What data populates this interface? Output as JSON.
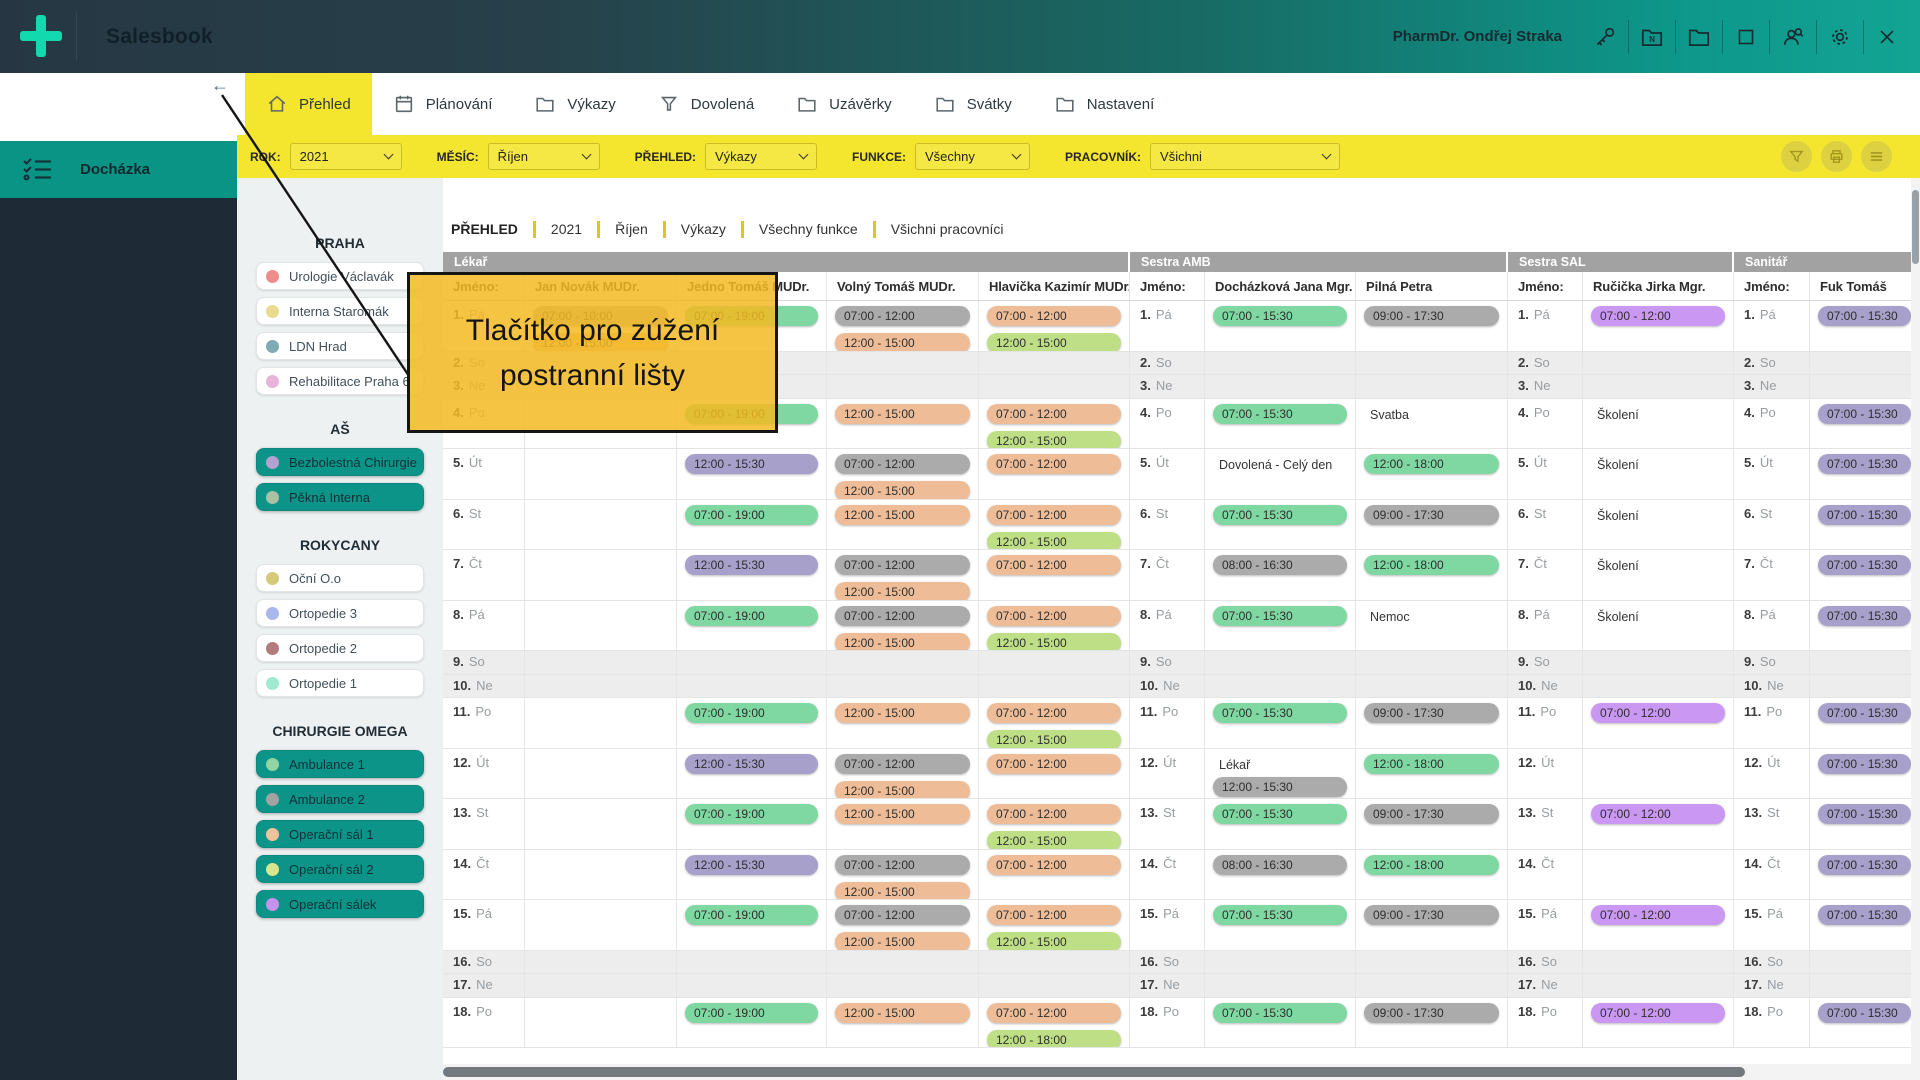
{
  "app": {
    "title": "Salesbook",
    "user": "PharmDr. Ondřej Straka"
  },
  "module": {
    "label": "Docházka"
  },
  "nav": {
    "back_arrow": "←",
    "tabs": [
      {
        "key": "prehled",
        "label": "Přehled",
        "icon": "home",
        "active": true
      },
      {
        "key": "planovani",
        "label": "Plánování",
        "icon": "calendar",
        "active": false
      },
      {
        "key": "vykazy",
        "label": "Výkazy",
        "icon": "folder",
        "active": false
      },
      {
        "key": "dovolena",
        "label": "Dovolená",
        "icon": "funnel",
        "active": false
      },
      {
        "key": "uzaverky",
        "label": "Uzávěrky",
        "icon": "folder",
        "active": false
      },
      {
        "key": "svatky",
        "label": "Svátky",
        "icon": "folder",
        "active": false
      },
      {
        "key": "nastaveni",
        "label": "Nastavení",
        "icon": "folder",
        "active": false
      }
    ]
  },
  "filters": {
    "items": [
      {
        "key": "rok",
        "label": "ROK:",
        "value": "2021"
      },
      {
        "key": "mesic",
        "label": "MĚSÍC:",
        "value": "Říjen"
      },
      {
        "key": "prehled",
        "label": "PŘEHLED:",
        "value": "Výkazy"
      },
      {
        "key": "funkce",
        "label": "FUNKCE:",
        "value": "Všechny"
      },
      {
        "key": "pracovnik",
        "label": "PRACOVNÍK:",
        "value": "Všichni"
      }
    ]
  },
  "sidebar": {
    "sections": [
      {
        "title": "PRAHA",
        "items": [
          {
            "label": "Urologie Václavák",
            "dot": "#ef8d8d",
            "selected": false
          },
          {
            "label": "Interna Staromák",
            "dot": "#e9da8f",
            "selected": false
          },
          {
            "label": "LDN Hrad",
            "dot": "#7fabb4",
            "selected": false
          },
          {
            "label": "Rehabilitace Praha 6",
            "dot": "#e7b3d8",
            "selected": false
          }
        ]
      },
      {
        "title": "AŠ",
        "items": [
          {
            "label": "Bezbolestná Chirurgie",
            "dot": "#b3a1cf",
            "selected": true
          },
          {
            "label": "Pěkná Interna",
            "dot": "#a8c2a3",
            "selected": true
          }
        ]
      },
      {
        "title": "ROKYCANY",
        "items": [
          {
            "label": "Oční O.o",
            "dot": "#d5ca7a",
            "selected": false
          },
          {
            "label": "Ortopedie 3",
            "dot": "#a9b7ec",
            "selected": false
          },
          {
            "label": "Ortopedie 2",
            "dot": "#b27c7c",
            "selected": false
          },
          {
            "label": "Ortopedie 1",
            "dot": "#a0ead1",
            "selected": false
          }
        ]
      },
      {
        "title": "CHIRURGIE OMEGA",
        "items": [
          {
            "label": "Ambulance 1",
            "dot": "#90d5a2",
            "selected": true
          },
          {
            "label": "Ambulance 2",
            "dot": "#a2a2a2",
            "selected": true
          },
          {
            "label": "Operační sál 1",
            "dot": "#f0c29c",
            "selected": true
          },
          {
            "label": "Operační sál 2",
            "dot": "#d8e48e",
            "selected": true
          },
          {
            "label": "Operační sálek",
            "dot": "#c693ec",
            "selected": true
          }
        ]
      }
    ]
  },
  "breadcrumb": [
    "PŘEHLED",
    "2021",
    "Říjen",
    "Výkazy",
    "Všechny funkce",
    "Všichni pracovníci"
  ],
  "tooltip": {
    "text": "Tlačítko pro zúžení postranní lišty"
  },
  "colors": {
    "accent_yellow": "#f4e62f",
    "teal": "#0d9488",
    "topbar_dark": "#263743",
    "group_header": "#a2a2a2",
    "chip": {
      "green": "#7fd7a1",
      "gray": "#ababab",
      "peach": "#eebd98",
      "lightgreen": "#bedf85",
      "lavender": "#a6a0ca",
      "violet": "#ca97f2"
    }
  },
  "table": {
    "name_label": "Jméno:",
    "groups": [
      {
        "label": "Lékař",
        "employees": [
          {
            "key": "novak",
            "name": "Jan Novák MUDr."
          },
          {
            "key": "jedno",
            "name": "Jedno Tomáš MUDr."
          },
          {
            "key": "volny",
            "name": "Volný Tomáš MUDr."
          },
          {
            "key": "hlavicka",
            "name": "Hlavička Kazimír MUDr."
          }
        ]
      },
      {
        "label": "Sestra AMB",
        "employees": [
          {
            "key": "dochazkova",
            "name": "Docházková Jana Mgr."
          },
          {
            "key": "pilna",
            "name": "Pilná Petra"
          }
        ]
      },
      {
        "label": "Sestra SAL",
        "employees": [
          {
            "key": "rucicka",
            "name": "Ručička Jirka Mgr."
          }
        ]
      },
      {
        "label": "Sanitář",
        "employees": [
          {
            "key": "fuk",
            "name": "Fuk Tomáš"
          }
        ]
      }
    ],
    "days": [
      {
        "num": "1.",
        "abbr": "Pá",
        "weekend": false,
        "cells": {
          "novak": [
            {
              "t": "07:00 - 10:00",
              "c": "gray"
            },
            {
              "t": "12:00 - 15:00",
              "c": "peach"
            }
          ],
          "jedno": [
            {
              "t": "07:00 - 19:00",
              "c": "green"
            }
          ],
          "volny": [
            {
              "t": "07:00 - 12:00",
              "c": "gray"
            },
            {
              "t": "12:00 - 15:00",
              "c": "peach"
            }
          ],
          "hlavicka": [
            {
              "t": "07:00 - 12:00",
              "c": "peach"
            },
            {
              "t": "12:00 - 15:00",
              "c": "lightgreen"
            }
          ],
          "dochazkova": [
            {
              "t": "07:00 - 15:30",
              "c": "green"
            }
          ],
          "pilna": [
            {
              "t": "09:00 - 17:30",
              "c": "gray"
            }
          ],
          "rucicka": [
            {
              "t": "07:00 - 12:00",
              "c": "violet"
            }
          ],
          "fuk": [
            {
              "t": "07:00 - 15:30",
              "c": "lavender"
            }
          ]
        }
      },
      {
        "num": "2.",
        "abbr": "So",
        "weekend": true,
        "cells": {}
      },
      {
        "num": "3.",
        "abbr": "Ne",
        "weekend": true,
        "cells": {}
      },
      {
        "num": "4.",
        "abbr": "Po",
        "weekend": false,
        "cells": {
          "jedno": [
            {
              "t": "07:00 - 19:00",
              "c": "green"
            }
          ],
          "volny": [
            {
              "t": "12:00 - 15:00",
              "c": "peach"
            }
          ],
          "hlavicka": [
            {
              "t": "07:00 - 12:00",
              "c": "peach"
            },
            {
              "t": "12:00 - 15:00",
              "c": "lightgreen"
            }
          ],
          "dochazkova": [
            {
              "t": "07:00 - 15:30",
              "c": "green"
            }
          ],
          "pilna": [
            {
              "note": "Svatba"
            }
          ],
          "rucicka": [
            {
              "note": "Školení"
            }
          ],
          "fuk": [
            {
              "t": "07:00 - 15:30",
              "c": "lavender"
            }
          ]
        }
      },
      {
        "num": "5.",
        "abbr": "Út",
        "weekend": false,
        "cells": {
          "jedno": [
            {
              "t": "12:00 - 15:30",
              "c": "lavender"
            }
          ],
          "volny": [
            {
              "t": "07:00 - 12:00",
              "c": "gray"
            },
            {
              "t": "12:00 - 15:00",
              "c": "peach"
            }
          ],
          "hlavicka": [
            {
              "t": "07:00 - 12:00",
              "c": "peach"
            }
          ],
          "dochazkova": [
            {
              "note": "Dovolená - Celý den"
            }
          ],
          "pilna": [
            {
              "t": "12:00 - 18:00",
              "c": "green"
            }
          ],
          "rucicka": [
            {
              "note": "Školení"
            }
          ],
          "fuk": [
            {
              "t": "07:00 - 15:30",
              "c": "lavender"
            }
          ]
        }
      },
      {
        "num": "6.",
        "abbr": "St",
        "weekend": false,
        "cells": {
          "jedno": [
            {
              "t": "07:00 - 19:00",
              "c": "green"
            }
          ],
          "volny": [
            {
              "t": "12:00 - 15:00",
              "c": "peach"
            }
          ],
          "hlavicka": [
            {
              "t": "07:00 - 12:00",
              "c": "peach"
            },
            {
              "t": "12:00 - 15:00",
              "c": "lightgreen"
            }
          ],
          "dochazkova": [
            {
              "t": "07:00 - 15:30",
              "c": "green"
            }
          ],
          "pilna": [
            {
              "t": "09:00 - 17:30",
              "c": "gray"
            }
          ],
          "rucicka": [
            {
              "note": "Školení"
            }
          ],
          "fuk": [
            {
              "t": "07:00 - 15:30",
              "c": "lavender"
            }
          ]
        }
      },
      {
        "num": "7.",
        "abbr": "Čt",
        "weekend": false,
        "cells": {
          "jedno": [
            {
              "t": "12:00 - 15:30",
              "c": "lavender"
            }
          ],
          "volny": [
            {
              "t": "07:00 - 12:00",
              "c": "gray"
            },
            {
              "t": "12:00 - 15:00",
              "c": "peach"
            }
          ],
          "hlavicka": [
            {
              "t": "07:00 - 12:00",
              "c": "peach"
            }
          ],
          "dochazkova": [
            {
              "t": "08:00 - 16:30",
              "c": "gray"
            }
          ],
          "pilna": [
            {
              "t": "12:00 - 18:00",
              "c": "green"
            }
          ],
          "rucicka": [
            {
              "note": "Školení"
            }
          ],
          "fuk": [
            {
              "t": "07:00 - 15:30",
              "c": "lavender"
            }
          ]
        }
      },
      {
        "num": "8.",
        "abbr": "Pá",
        "weekend": false,
        "cells": {
          "jedno": [
            {
              "t": "07:00 - 19:00",
              "c": "green"
            }
          ],
          "volny": [
            {
              "t": "07:00 - 12:00",
              "c": "gray"
            },
            {
              "t": "12:00 - 15:00",
              "c": "peach"
            }
          ],
          "hlavicka": [
            {
              "t": "07:00 - 12:00",
              "c": "peach"
            },
            {
              "t": "12:00 - 15:00",
              "c": "lightgreen"
            }
          ],
          "dochazkova": [
            {
              "t": "07:00 - 15:30",
              "c": "green"
            }
          ],
          "pilna": [
            {
              "note": "Nemoc"
            }
          ],
          "rucicka": [
            {
              "note": "Školení"
            }
          ],
          "fuk": [
            {
              "t": "07:00 - 15:30",
              "c": "lavender"
            }
          ]
        }
      },
      {
        "num": "9.",
        "abbr": "So",
        "weekend": true,
        "cells": {}
      },
      {
        "num": "10.",
        "abbr": "Ne",
        "weekend": true,
        "cells": {}
      },
      {
        "num": "11.",
        "abbr": "Po",
        "weekend": false,
        "cells": {
          "jedno": [
            {
              "t": "07:00 - 19:00",
              "c": "green"
            }
          ],
          "volny": [
            {
              "t": "12:00 - 15:00",
              "c": "peach"
            }
          ],
          "hlavicka": [
            {
              "t": "07:00 - 12:00",
              "c": "peach"
            },
            {
              "t": "12:00 - 15:00",
              "c": "lightgreen"
            }
          ],
          "dochazkova": [
            {
              "t": "07:00 - 15:30",
              "c": "green"
            }
          ],
          "pilna": [
            {
              "t": "09:00 - 17:30",
              "c": "gray"
            }
          ],
          "rucicka": [
            {
              "t": "07:00 - 12:00",
              "c": "violet"
            }
          ],
          "fuk": [
            {
              "t": "07:00 - 15:30",
              "c": "lavender"
            }
          ]
        }
      },
      {
        "num": "12.",
        "abbr": "Út",
        "weekend": false,
        "cells": {
          "jedno": [
            {
              "t": "12:00 - 15:30",
              "c": "lavender"
            }
          ],
          "volny": [
            {
              "t": "07:00 - 12:00",
              "c": "gray"
            },
            {
              "t": "12:00 - 15:00",
              "c": "peach"
            }
          ],
          "hlavicka": [
            {
              "t": "07:00 - 12:00",
              "c": "peach"
            }
          ],
          "dochazkova": [
            {
              "note": "Lékař"
            },
            {
              "t": "12:00 - 15:30",
              "c": "gray"
            }
          ],
          "pilna": [
            {
              "t": "12:00 - 18:00",
              "c": "green"
            }
          ],
          "rucicka": [],
          "fuk": [
            {
              "t": "07:00 - 15:30",
              "c": "lavender"
            }
          ]
        }
      },
      {
        "num": "13.",
        "abbr": "St",
        "weekend": false,
        "cells": {
          "jedno": [
            {
              "t": "07:00 - 19:00",
              "c": "green"
            }
          ],
          "volny": [
            {
              "t": "12:00 - 15:00",
              "c": "peach"
            }
          ],
          "hlavicka": [
            {
              "t": "07:00 - 12:00",
              "c": "peach"
            },
            {
              "t": "12:00 - 15:00",
              "c": "lightgreen"
            }
          ],
          "dochazkova": [
            {
              "t": "07:00 - 15:30",
              "c": "green"
            }
          ],
          "pilna": [
            {
              "t": "09:00 - 17:30",
              "c": "gray"
            }
          ],
          "rucicka": [
            {
              "t": "07:00 - 12:00",
              "c": "violet"
            }
          ],
          "fuk": [
            {
              "t": "07:00 - 15:30",
              "c": "lavender"
            }
          ]
        }
      },
      {
        "num": "14.",
        "abbr": "Čt",
        "weekend": false,
        "cells": {
          "jedno": [
            {
              "t": "12:00 - 15:30",
              "c": "lavender"
            }
          ],
          "volny": [
            {
              "t": "07:00 - 12:00",
              "c": "gray"
            },
            {
              "t": "12:00 - 15:00",
              "c": "peach"
            }
          ],
          "hlavicka": [
            {
              "t": "07:00 - 12:00",
              "c": "peach"
            }
          ],
          "dochazkova": [
            {
              "t": "08:00 - 16:30",
              "c": "gray"
            }
          ],
          "pilna": [
            {
              "t": "12:00 - 18:00",
              "c": "green"
            }
          ],
          "rucicka": [],
          "fuk": [
            {
              "t": "07:00 - 15:30",
              "c": "lavender"
            }
          ]
        }
      },
      {
        "num": "15.",
        "abbr": "Pá",
        "weekend": false,
        "cells": {
          "jedno": [
            {
              "t": "07:00 - 19:00",
              "c": "green"
            }
          ],
          "volny": [
            {
              "t": "07:00 - 12:00",
              "c": "gray"
            },
            {
              "t": "12:00 - 15:00",
              "c": "peach"
            }
          ],
          "hlavicka": [
            {
              "t": "07:00 - 12:00",
              "c": "peach"
            },
            {
              "t": "12:00 - 15:00",
              "c": "lightgreen"
            }
          ],
          "dochazkova": [
            {
              "t": "07:00 - 15:30",
              "c": "green"
            }
          ],
          "pilna": [
            {
              "t": "09:00 - 17:30",
              "c": "gray"
            }
          ],
          "rucicka": [
            {
              "t": "07:00 - 12:00",
              "c": "violet"
            }
          ],
          "fuk": [
            {
              "t": "07:00 - 15:30",
              "c": "lavender"
            }
          ]
        }
      },
      {
        "num": "16.",
        "abbr": "So",
        "weekend": true,
        "cells": {}
      },
      {
        "num": "17.",
        "abbr": "Ne",
        "weekend": true,
        "cells": {}
      },
      {
        "num": "18.",
        "abbr": "Po",
        "weekend": false,
        "cells": {
          "jedno": [
            {
              "t": "07:00 - 19:00",
              "c": "green"
            }
          ],
          "volny": [
            {
              "t": "12:00 - 15:00",
              "c": "peach"
            }
          ],
          "hlavicka": [
            {
              "t": "07:00 - 12:00",
              "c": "peach"
            },
            {
              "t": "12:00 - 18:00",
              "c": "lightgreen"
            }
          ],
          "dochazkova": [
            {
              "t": "07:00 - 15:30",
              "c": "green"
            }
          ],
          "pilna": [
            {
              "t": "09:00 - 17:30",
              "c": "gray"
            }
          ],
          "rucicka": [
            {
              "t": "07:00 - 12:00",
              "c": "violet"
            }
          ],
          "fuk": [
            {
              "t": "07:00 - 15:30",
              "c": "lavender"
            }
          ]
        }
      }
    ]
  }
}
